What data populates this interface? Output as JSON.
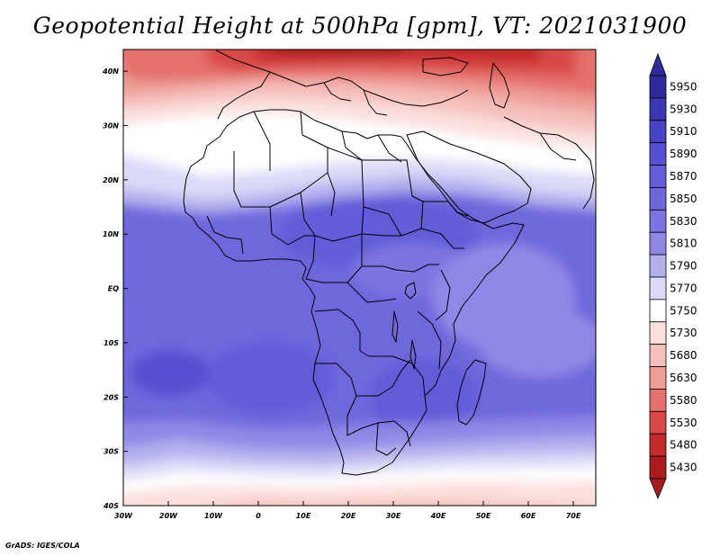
{
  "title": "Geopotential Height at 500hPa [gpm], VT: 2021031900",
  "footer": "GrADS: IGES/COLA",
  "map": {
    "lon_labels": [
      "30W",
      "20W",
      "10W",
      "0",
      "10E",
      "20E",
      "30E",
      "40E",
      "50E",
      "60E",
      "70E"
    ],
    "lon_values": [
      -30,
      -20,
      -10,
      0,
      10,
      20,
      30,
      40,
      50,
      60,
      70
    ],
    "lat_labels": [
      "40N",
      "30N",
      "20N",
      "10N",
      "EQ",
      "10S",
      "20S",
      "30S",
      "40S"
    ],
    "lat_values": [
      40,
      30,
      20,
      10,
      0,
      -10,
      -20,
      -30,
      -40
    ],
    "lon_range": [
      -30,
      75
    ],
    "lat_range": [
      -40,
      44
    ]
  },
  "colorbar": {
    "labels": [
      "5950",
      "5930",
      "5910",
      "5890",
      "5870",
      "5850",
      "5830",
      "5810",
      "5790",
      "5770",
      "5750",
      "5730",
      "5680",
      "5630",
      "5580",
      "5530",
      "5480",
      "5430"
    ],
    "colors": [
      "#2e2a9c",
      "#3b36b2",
      "#4842c4",
      "#5650d2",
      "#625cd8",
      "#6d66db",
      "#7b74e0",
      "#8f88e6",
      "#b4b0ee",
      "#dcdaf7",
      "#ffffff",
      "#fbe0de",
      "#f5c0bc",
      "#ee9d98",
      "#e5706c",
      "#d84847",
      "#c42a2b",
      "#a81c1e"
    ]
  }
}
